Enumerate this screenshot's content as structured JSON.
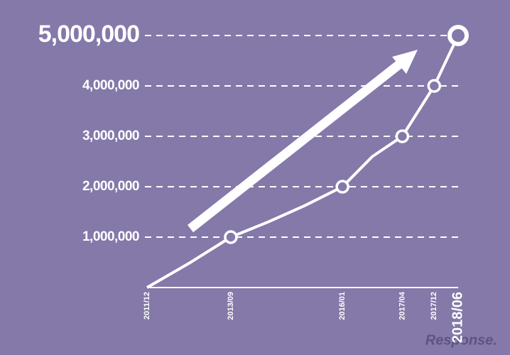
{
  "chart_data": {
    "type": "line",
    "categories": [
      "2011/12",
      null,
      "2013/09",
      null,
      null,
      "2016/01",
      null,
      "2017/04",
      "2017/12",
      "2018/06"
    ],
    "values": [
      0,
      480000,
      1000000,
      1300000,
      1630000,
      2000000,
      2600000,
      3000000,
      4000000,
      5000000
    ],
    "color": "#ffffff",
    "ylim": [
      0,
      5000000
    ],
    "yticks": [
      {
        "value": 1000000,
        "label": "1,000,000"
      },
      {
        "value": 2000000,
        "label": "2,000,000"
      },
      {
        "value": 3000000,
        "label": "3,000,000"
      },
      {
        "value": 4000000,
        "label": "4,000,000"
      },
      {
        "value": 5000000,
        "label": "5,000,000"
      }
    ],
    "grid": true,
    "watermark": "Response."
  }
}
